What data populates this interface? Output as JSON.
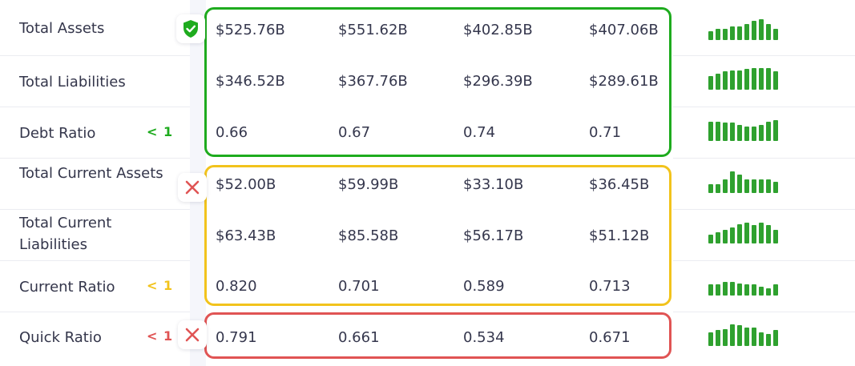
{
  "colors": {
    "good": "#1eab1e",
    "warn": "#f2c31c",
    "bad": "#e05454",
    "spark": "#2fa12f"
  },
  "groups": [
    {
      "name": "solvency",
      "status": "good",
      "icon": "shield-check-icon"
    },
    {
      "name": "liquidity",
      "status": "warn",
      "icon": "x-icon"
    },
    {
      "name": "quick",
      "status": "bad",
      "icon": "x-icon"
    }
  ],
  "rows": [
    {
      "label": "Total Assets",
      "badge": "",
      "values": [
        "$525.76B",
        "$551.62B",
        "$402.85B",
        "$407.06B"
      ],
      "spark": [
        0.35,
        0.45,
        0.45,
        0.55,
        0.55,
        0.65,
        0.8,
        0.85,
        0.65,
        0.45
      ]
    },
    {
      "label": "Total Liabilities",
      "badge": "",
      "values": [
        "$346.52B",
        "$367.76B",
        "$296.39B",
        "$289.61B"
      ],
      "spark": [
        0.55,
        0.65,
        0.75,
        0.8,
        0.8,
        0.85,
        0.9,
        0.9,
        0.9,
        0.75
      ]
    },
    {
      "label": "Debt Ratio",
      "badge": "< 1",
      "values": [
        "0.66",
        "0.67",
        "0.74",
        "0.71"
      ],
      "spark": [
        0.8,
        0.8,
        0.75,
        0.75,
        0.65,
        0.6,
        0.6,
        0.65,
        0.8,
        0.85
      ]
    },
    {
      "label": "Total Current Assets",
      "badge": "",
      "values": [
        "$52.00B",
        "$59.99B",
        "$33.10B",
        "$36.45B"
      ],
      "spark": [
        0.35,
        0.35,
        0.55,
        0.9,
        0.75,
        0.55,
        0.55,
        0.55,
        0.55,
        0.45
      ]
    },
    {
      "label": "Total Current Liabilities",
      "badge": "",
      "values": [
        "$63.43B",
        "$85.58B",
        "$56.17B",
        "$51.12B"
      ],
      "spark": [
        0.35,
        0.45,
        0.55,
        0.65,
        0.8,
        0.85,
        0.75,
        0.85,
        0.75,
        0.55
      ]
    },
    {
      "label": "Current Ratio",
      "badge": "< 1",
      "values": [
        "0.820",
        "0.701",
        "0.589",
        "0.713"
      ],
      "spark": [
        0.45,
        0.45,
        0.55,
        0.55,
        0.5,
        0.45,
        0.45,
        0.35,
        0.3,
        0.45
      ]
    },
    {
      "label": "Quick Ratio",
      "badge": "< 1",
      "values": [
        "0.791",
        "0.661",
        "0.534",
        "0.671"
      ],
      "spark": [
        0.55,
        0.65,
        0.7,
        0.9,
        0.85,
        0.75,
        0.75,
        0.55,
        0.5,
        0.65
      ]
    }
  ]
}
